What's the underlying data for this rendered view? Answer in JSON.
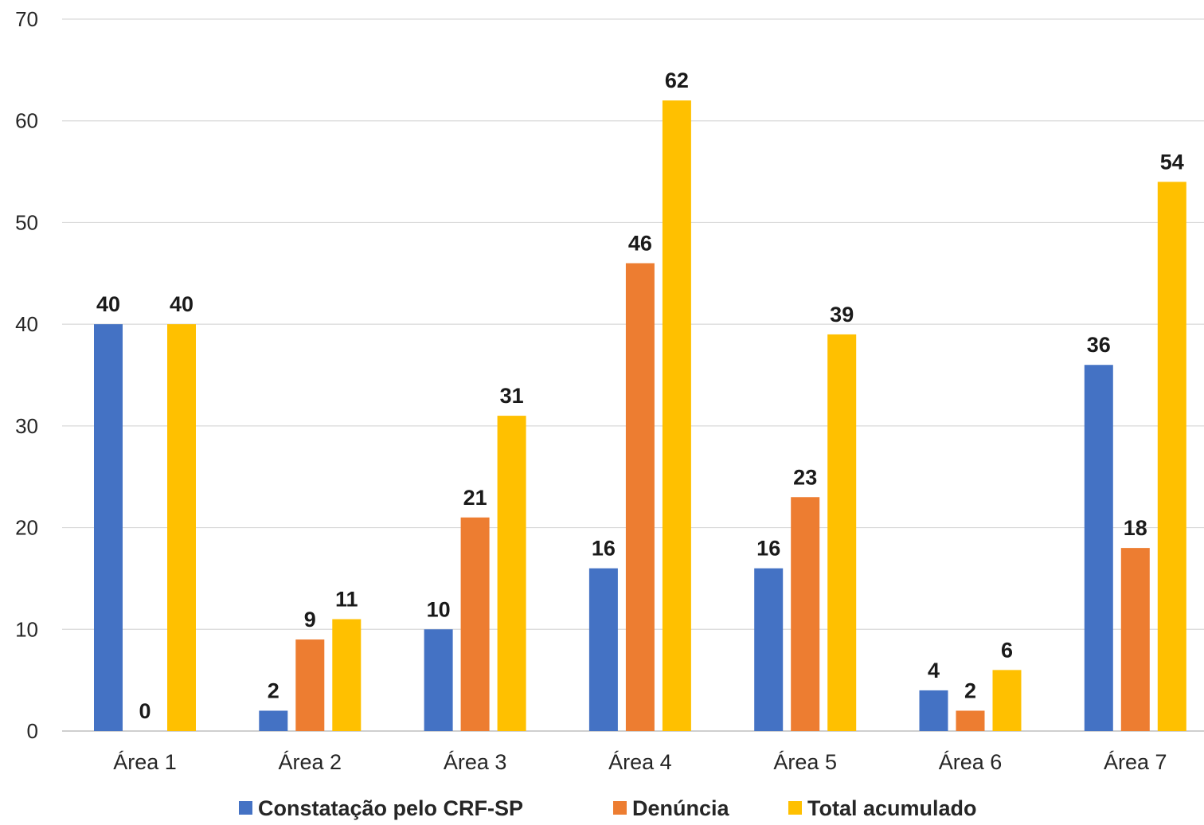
{
  "chart_data": {
    "type": "bar",
    "categories": [
      "Área 1",
      "Área 2",
      "Área 3",
      "Área 4",
      "Área 5",
      "Área 6",
      "Área 7"
    ],
    "series": [
      {
        "name": "Constatação pelo CRF-SP",
        "color": "#4472C4",
        "values": [
          40,
          2,
          10,
          16,
          16,
          4,
          36
        ]
      },
      {
        "name": "Denúncia",
        "color": "#ED7D31",
        "values": [
          0,
          9,
          21,
          46,
          23,
          2,
          18
        ]
      },
      {
        "name": "Total acumulado",
        "color": "#FFC000",
        "values": [
          40,
          11,
          31,
          62,
          39,
          6,
          54
        ]
      }
    ],
    "ylim": [
      0,
      70
    ],
    "yticks": [
      0,
      10,
      20,
      30,
      40,
      50,
      60,
      70
    ],
    "grid": true,
    "legend_position": "bottom",
    "data_labels": true
  }
}
